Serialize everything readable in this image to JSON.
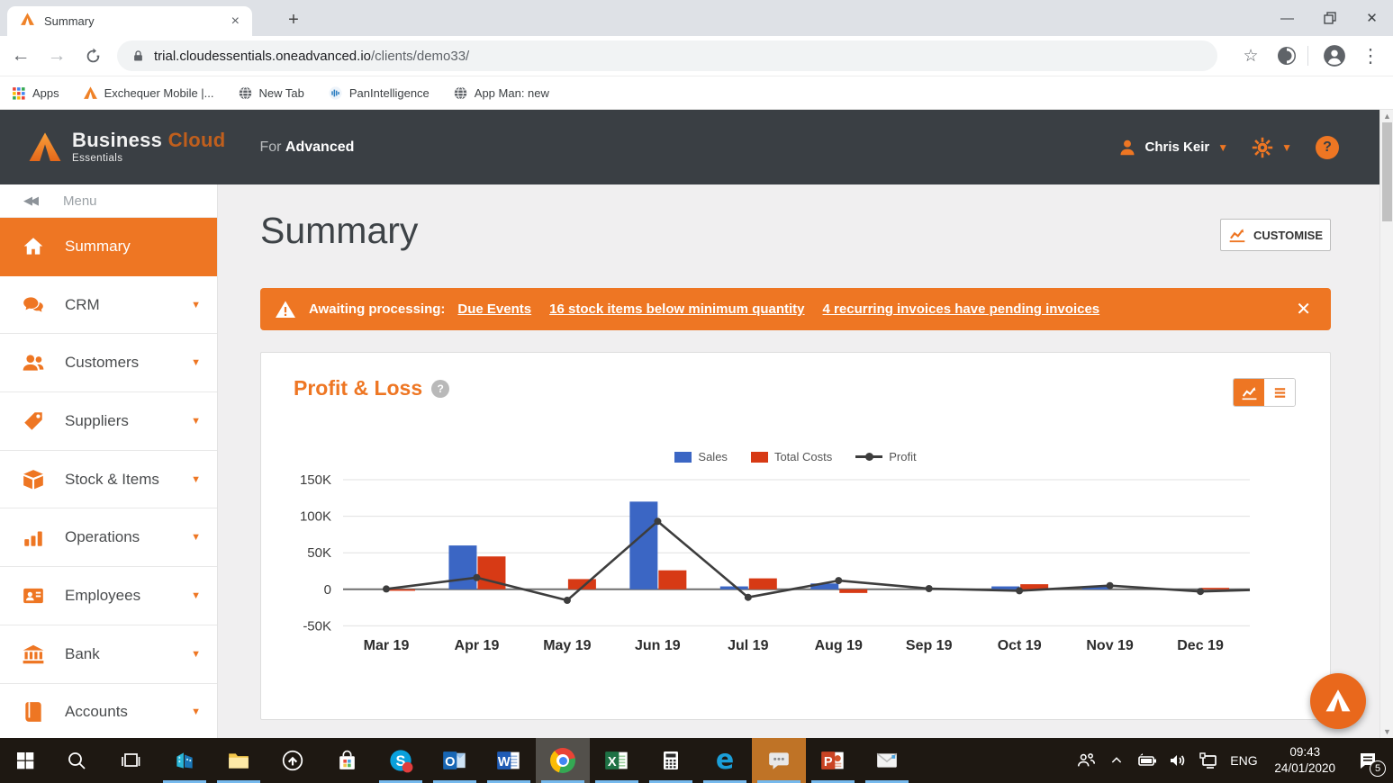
{
  "colors": {
    "accent": "#ee7623",
    "header_bg": "#3a3f44",
    "sales_blue": "#3b66c4",
    "costs_red": "#d73a15",
    "profit_dark": "#3d3d3d",
    "taskbar_bg": "#1e1812"
  },
  "browser": {
    "tab_title": "Summary",
    "url_host": "trial.cloudessentials.oneadvanced.io",
    "url_path": "/clients/demo33/",
    "bookmarks": [
      {
        "label": "Apps",
        "icon": "apps-grid"
      },
      {
        "label": "Exchequer Mobile |...",
        "icon": "advanced-triangle"
      },
      {
        "label": "New Tab",
        "icon": "globe"
      },
      {
        "label": "PanIntelligence",
        "icon": "pan-bars"
      },
      {
        "label": "App Man: new",
        "icon": "globe"
      }
    ]
  },
  "app_header": {
    "brand_primary": "Business",
    "brand_secondary": "Cloud",
    "brand_sub": "Essentials",
    "tagline_prefix": "For",
    "tagline_bold": "Advanced",
    "user_name": "Chris Keir"
  },
  "sidebar": {
    "menu_label": "Menu",
    "items": [
      {
        "label": "Summary",
        "icon": "home",
        "active": true,
        "caret": false
      },
      {
        "label": "CRM",
        "icon": "chat",
        "active": false,
        "caret": true
      },
      {
        "label": "Customers",
        "icon": "users",
        "active": false,
        "caret": true
      },
      {
        "label": "Suppliers",
        "icon": "tag",
        "active": false,
        "caret": true
      },
      {
        "label": "Stock & Items",
        "icon": "box",
        "active": false,
        "caret": true
      },
      {
        "label": "Operations",
        "icon": "bars",
        "active": false,
        "caret": true
      },
      {
        "label": "Employees",
        "icon": "idcard",
        "active": false,
        "caret": true
      },
      {
        "label": "Bank",
        "icon": "bank",
        "active": false,
        "caret": true
      },
      {
        "label": "Accounts",
        "icon": "book",
        "active": false,
        "caret": true
      }
    ]
  },
  "main": {
    "page_title": "Summary",
    "customise_label": "CUSTOMISE",
    "alert": {
      "prefix": "Awaiting processing:",
      "links": [
        "Due Events",
        "16 stock items below minimum quantity",
        "4 recurring invoices have pending invoices"
      ]
    },
    "panel_title": "Profit & Loss"
  },
  "chart_data": {
    "type": "bar",
    "title": "Profit & Loss",
    "categories": [
      "Mar 19",
      "Apr 19",
      "May 19",
      "Jun 19",
      "Jul 19",
      "Aug 19",
      "Sep 19",
      "Oct 19",
      "Nov 19",
      "Dec 19"
    ],
    "series": [
      {
        "name": "Sales",
        "type": "bar",
        "color": "#3b66c4",
        "values": [
          0,
          60000,
          0,
          120000,
          4000,
          8000,
          0,
          4000,
          4000,
          0
        ]
      },
      {
        "name": "Total Costs",
        "type": "bar",
        "color": "#d73a15",
        "values": [
          -2000,
          45000,
          14000,
          26000,
          15000,
          -5000,
          0,
          7000,
          0,
          2000
        ]
      },
      {
        "name": "Profit",
        "type": "line",
        "color": "#3d3d3d",
        "values": [
          500,
          16000,
          -15000,
          93000,
          -11000,
          12000,
          1000,
          -2000,
          5000,
          -3000
        ]
      }
    ],
    "y_ticks": [
      150000,
      100000,
      50000,
      0,
      -50000
    ],
    "y_tick_labels": [
      "150K",
      "100K",
      "50K",
      "0",
      "-50K"
    ],
    "ylim": [
      -50000,
      150000
    ],
    "legend_position": "top",
    "grid": true
  },
  "taskbar": {
    "icons": [
      {
        "name": "start",
        "open": false,
        "state": ""
      },
      {
        "name": "search",
        "open": false,
        "state": ""
      },
      {
        "name": "task-view",
        "open": false,
        "state": ""
      },
      {
        "name": "erp-app",
        "open": true,
        "state": ""
      },
      {
        "name": "file-explorer",
        "open": true,
        "state": ""
      },
      {
        "name": "capture",
        "open": false,
        "state": ""
      },
      {
        "name": "store",
        "open": false,
        "state": ""
      },
      {
        "name": "skype",
        "open": true,
        "state": ""
      },
      {
        "name": "outlook",
        "open": true,
        "state": ""
      },
      {
        "name": "word",
        "open": true,
        "state": ""
      },
      {
        "name": "chrome",
        "open": true,
        "state": "focused"
      },
      {
        "name": "excel",
        "open": true,
        "state": ""
      },
      {
        "name": "calculator",
        "open": true,
        "state": ""
      },
      {
        "name": "edge",
        "open": true,
        "state": ""
      },
      {
        "name": "chat",
        "open": true,
        "state": "orange"
      },
      {
        "name": "powerpoint",
        "open": true,
        "state": ""
      },
      {
        "name": "mail",
        "open": true,
        "state": ""
      }
    ],
    "tray": {
      "lang": "ENG",
      "time": "09:43",
      "date": "24/01/2020",
      "notification_count": "5"
    }
  }
}
